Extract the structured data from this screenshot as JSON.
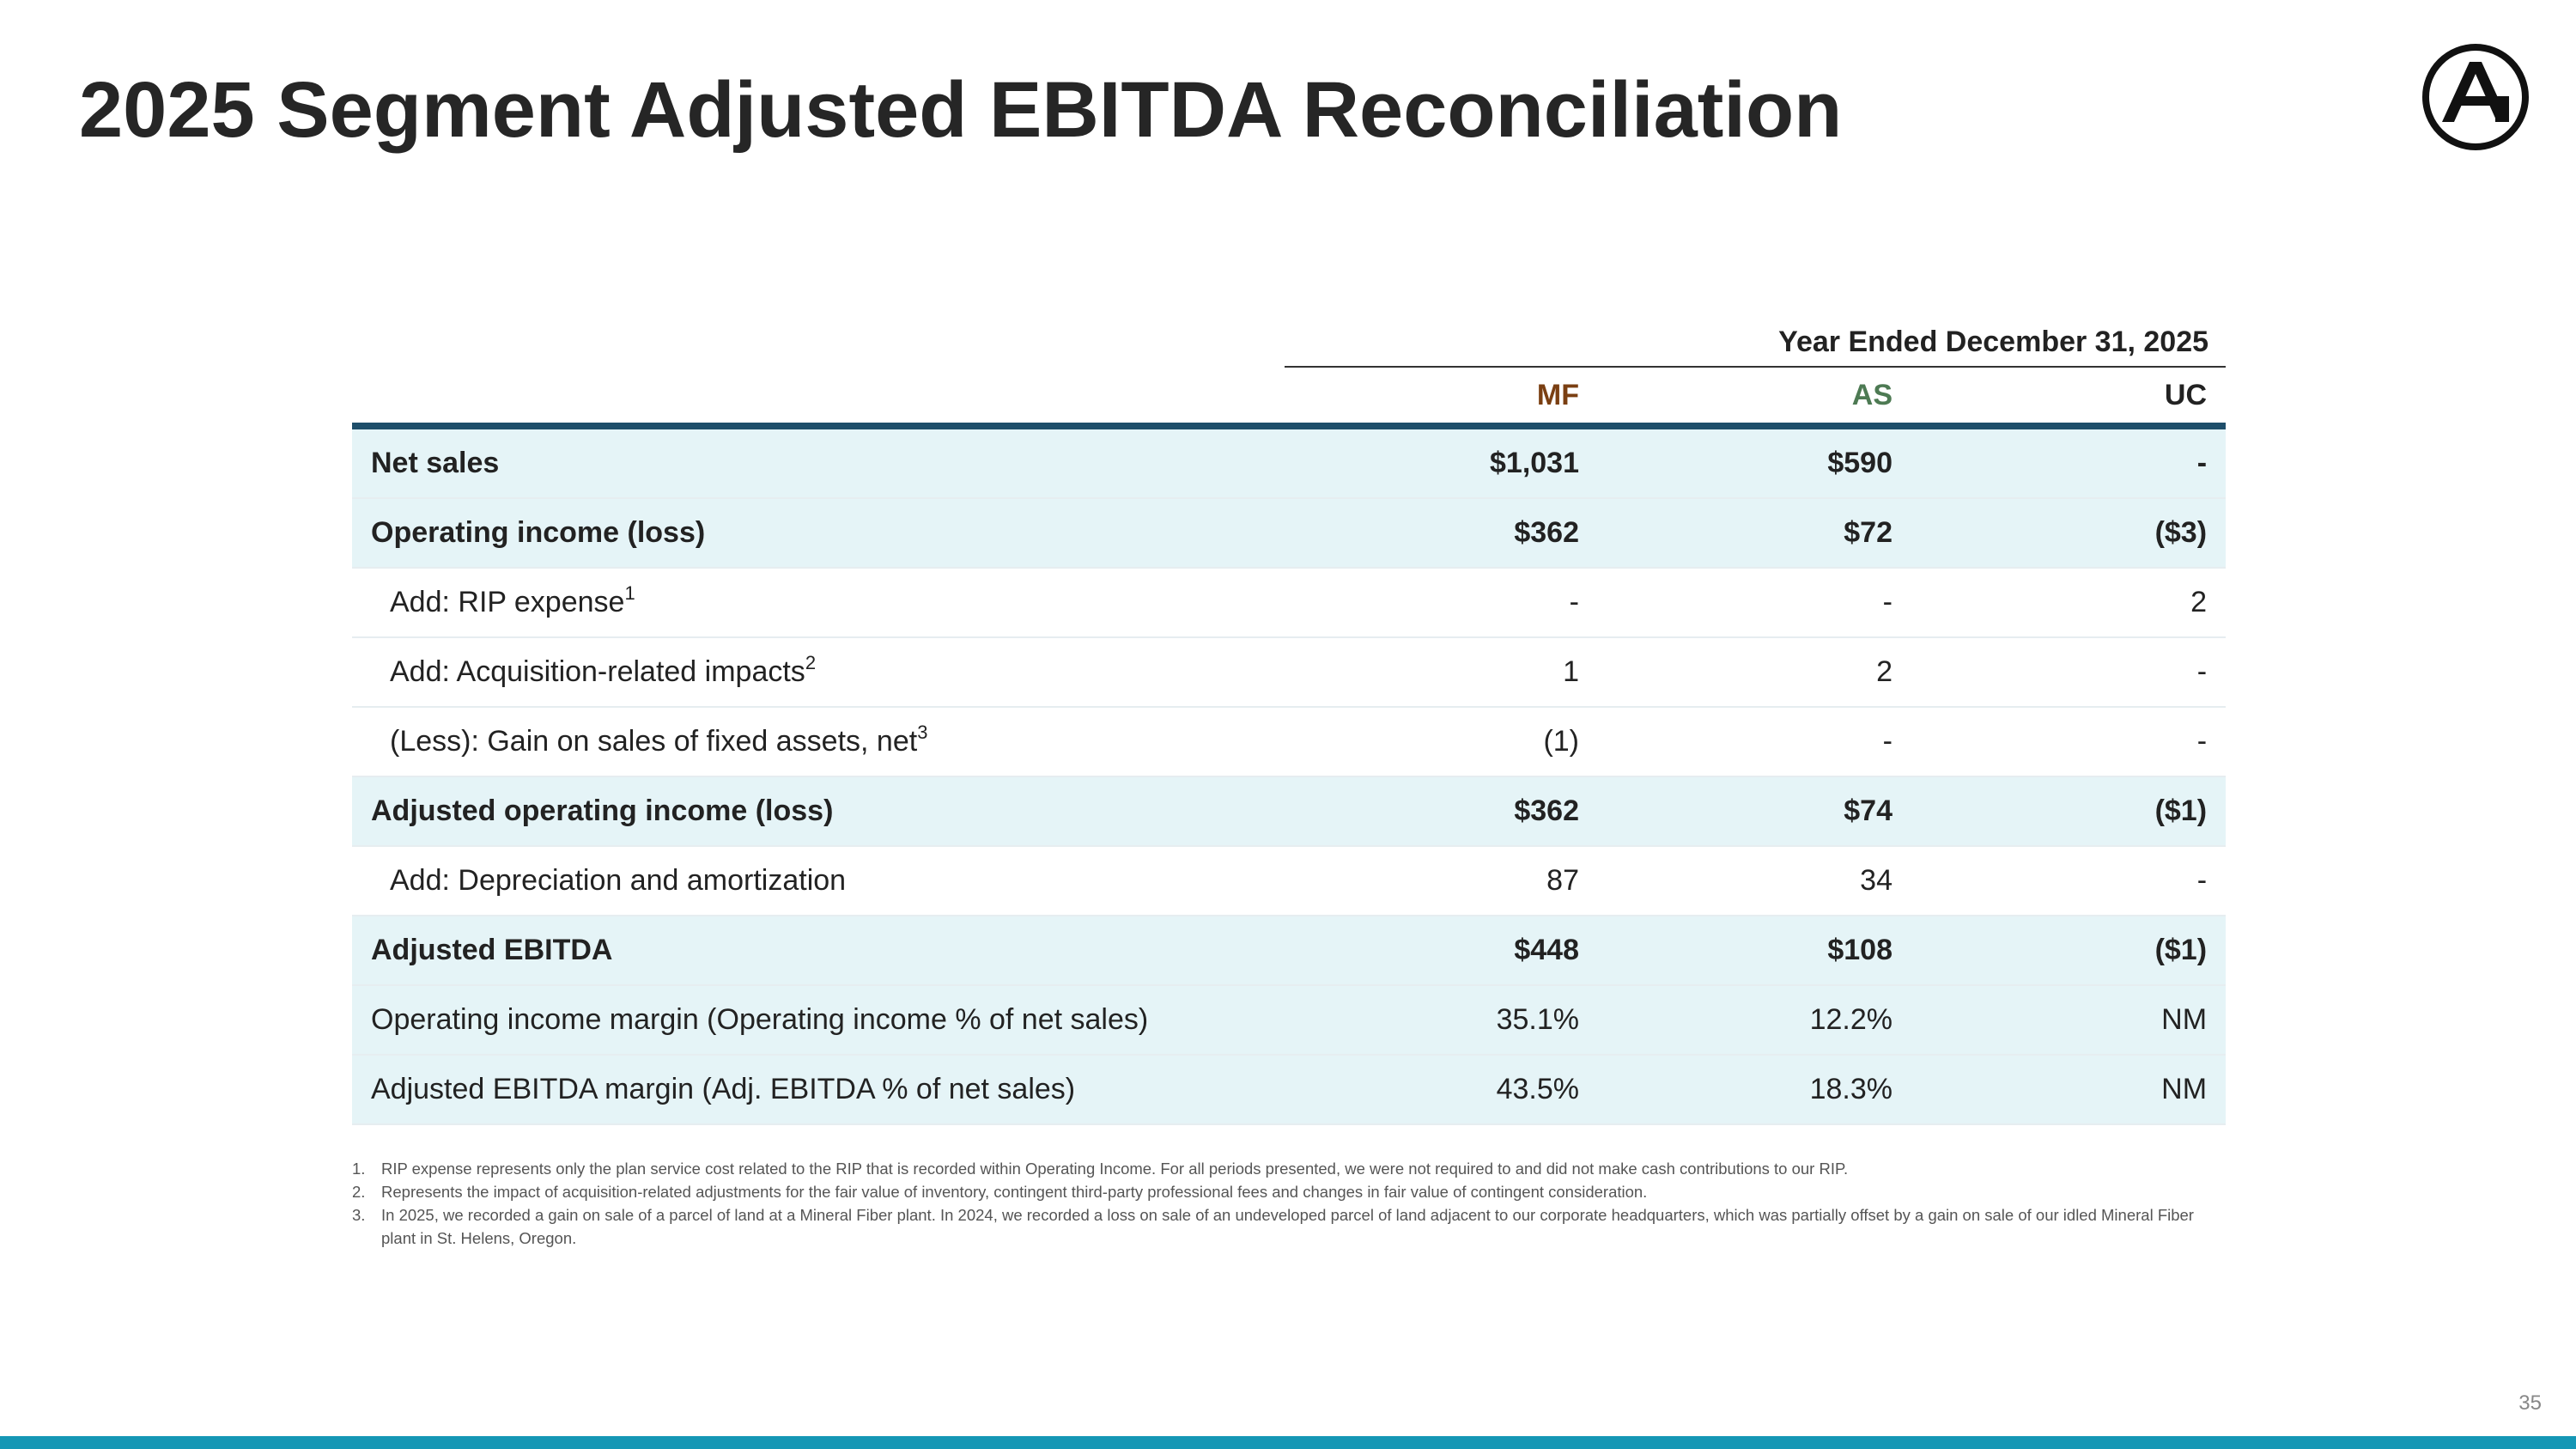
{
  "title": "2025 Segment Adjusted EBITDA Reconciliation",
  "logo_letter": "A",
  "table": {
    "period_header": "Year Ended December 31, 2025",
    "segments": [
      {
        "label": "MF",
        "color": "#7a3f12"
      },
      {
        "label": "AS",
        "color": "#4d7a53"
      },
      {
        "label": "UC",
        "color": "#222222"
      }
    ],
    "rows": [
      {
        "label": "Net sales",
        "sup": "",
        "values": [
          "$1,031",
          "$590",
          "-"
        ],
        "bold": true,
        "shaded": true,
        "indent": false
      },
      {
        "label": "Operating income (loss)",
        "sup": "",
        "values": [
          "$362",
          "$72",
          "($3)"
        ],
        "bold": true,
        "shaded": true,
        "indent": false
      },
      {
        "label": "Add: RIP expense",
        "sup": "1",
        "values": [
          "-",
          "-",
          "2"
        ],
        "bold": false,
        "shaded": false,
        "indent": true
      },
      {
        "label": "Add: Acquisition-related impacts",
        "sup": "2",
        "values": [
          "1",
          "2",
          "-"
        ],
        "bold": false,
        "shaded": false,
        "indent": true
      },
      {
        "label": "(Less): Gain on sales of fixed assets, net",
        "sup": "3",
        "values": [
          "(1)",
          "-",
          "-"
        ],
        "bold": false,
        "shaded": false,
        "indent": true
      },
      {
        "label": "Adjusted operating income (loss)",
        "sup": "",
        "values": [
          "$362",
          "$74",
          "($1)"
        ],
        "bold": true,
        "shaded": true,
        "indent": false
      },
      {
        "label": "Add: Depreciation and amortization",
        "sup": "",
        "values": [
          "87",
          "34",
          "-"
        ],
        "bold": false,
        "shaded": false,
        "indent": true
      },
      {
        "label": "Adjusted EBITDA",
        "sup": "",
        "values": [
          "$448",
          "$108",
          "($1)"
        ],
        "bold": true,
        "shaded": true,
        "indent": false
      },
      {
        "label": "Operating income margin (Operating income % of net sales)",
        "sup": "",
        "values": [
          "35.1%",
          "12.2%",
          "NM"
        ],
        "bold": false,
        "shaded": true,
        "indent": false
      },
      {
        "label": "Adjusted EBITDA margin (Adj. EBITDA % of net sales)",
        "sup": "",
        "values": [
          "43.5%",
          "18.3%",
          "NM"
        ],
        "bold": false,
        "shaded": true,
        "indent": false
      }
    ]
  },
  "footnotes": [
    {
      "num": "1.",
      "text": "RIP expense represents only the plan service cost related to the RIP that is recorded within Operating Income. For all periods presented, we were not required to and did not make cash contributions to our RIP."
    },
    {
      "num": "2.",
      "text": "Represents the impact of acquisition-related adjustments for the fair value of inventory, contingent third-party professional fees and changes in fair value of contingent consideration."
    },
    {
      "num": "3.",
      "text": "In 2025, we recorded a gain on sale of a parcel of land at a Mineral Fiber plant. In 2024, we recorded a loss on sale of an undeveloped parcel of land adjacent to our corporate headquarters, which was partially offset by a gain on sale of our idled Mineral Fiber plant in St. Helens, Oregon."
    }
  ],
  "page_number": "35",
  "colors": {
    "header_rule": "#1e4e6a",
    "row_shade": "#e5f4f7",
    "bottom_bar": "#1597b5"
  }
}
